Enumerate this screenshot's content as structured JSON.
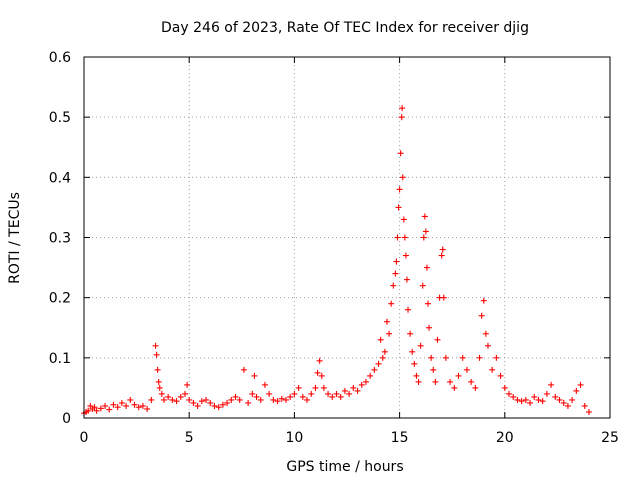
{
  "chart_data": {
    "type": "scatter",
    "title": "Day 246 of 2023, Rate Of TEC Index for receiver djig",
    "xlabel": "GPS time / hours",
    "ylabel": "ROTI / TECUs",
    "xlim": [
      0,
      25
    ],
    "ylim": [
      0,
      0.6
    ],
    "xticks": [
      0,
      5,
      10,
      15,
      20,
      25
    ],
    "yticks": [
      0,
      0.1,
      0.2,
      0.3,
      0.4,
      0.5,
      0.6
    ],
    "xtick_labels": [
      "0",
      "5",
      "10",
      "15",
      "20",
      "25"
    ],
    "ytick_labels": [
      "0",
      "0.1",
      "0.2",
      "0.3",
      "0.4",
      "0.5",
      "0.6"
    ],
    "grid": true,
    "marker": "+",
    "series_color": "#ff0000",
    "series": [
      {
        "name": "ROTI",
        "points": [
          [
            0.0,
            0.008
          ],
          [
            0.1,
            0.01
          ],
          [
            0.2,
            0.012
          ],
          [
            0.3,
            0.02
          ],
          [
            0.4,
            0.015
          ],
          [
            0.5,
            0.018
          ],
          [
            0.6,
            0.012
          ],
          [
            0.8,
            0.016
          ],
          [
            1.0,
            0.02
          ],
          [
            1.2,
            0.014
          ],
          [
            1.4,
            0.022
          ],
          [
            1.6,
            0.018
          ],
          [
            1.8,
            0.025
          ],
          [
            2.0,
            0.02
          ],
          [
            2.2,
            0.03
          ],
          [
            2.4,
            0.022
          ],
          [
            2.6,
            0.018
          ],
          [
            2.8,
            0.02
          ],
          [
            3.0,
            0.015
          ],
          [
            3.2,
            0.03
          ],
          [
            3.4,
            0.12
          ],
          [
            3.45,
            0.105
          ],
          [
            3.5,
            0.08
          ],
          [
            3.55,
            0.06
          ],
          [
            3.6,
            0.05
          ],
          [
            3.7,
            0.04
          ],
          [
            3.8,
            0.03
          ],
          [
            4.0,
            0.035
          ],
          [
            4.2,
            0.03
          ],
          [
            4.4,
            0.028
          ],
          [
            4.6,
            0.035
          ],
          [
            4.8,
            0.04
          ],
          [
            4.9,
            0.055
          ],
          [
            5.0,
            0.03
          ],
          [
            5.2,
            0.025
          ],
          [
            5.4,
            0.02
          ],
          [
            5.6,
            0.028
          ],
          [
            5.8,
            0.03
          ],
          [
            6.0,
            0.025
          ],
          [
            6.2,
            0.02
          ],
          [
            6.4,
            0.018
          ],
          [
            6.6,
            0.022
          ],
          [
            6.8,
            0.025
          ],
          [
            7.0,
            0.03
          ],
          [
            7.2,
            0.035
          ],
          [
            7.4,
            0.03
          ],
          [
            7.6,
            0.08
          ],
          [
            7.8,
            0.025
          ],
          [
            8.0,
            0.04
          ],
          [
            8.1,
            0.07
          ],
          [
            8.2,
            0.035
          ],
          [
            8.4,
            0.03
          ],
          [
            8.6,
            0.055
          ],
          [
            8.8,
            0.04
          ],
          [
            9.0,
            0.03
          ],
          [
            9.2,
            0.028
          ],
          [
            9.4,
            0.032
          ],
          [
            9.6,
            0.03
          ],
          [
            9.8,
            0.035
          ],
          [
            10.0,
            0.04
          ],
          [
            10.2,
            0.05
          ],
          [
            10.4,
            0.035
          ],
          [
            10.6,
            0.03
          ],
          [
            10.8,
            0.04
          ],
          [
            11.0,
            0.05
          ],
          [
            11.1,
            0.075
          ],
          [
            11.2,
            0.095
          ],
          [
            11.3,
            0.07
          ],
          [
            11.4,
            0.05
          ],
          [
            11.6,
            0.04
          ],
          [
            11.8,
            0.035
          ],
          [
            12.0,
            0.04
          ],
          [
            12.2,
            0.035
          ],
          [
            12.4,
            0.045
          ],
          [
            12.6,
            0.04
          ],
          [
            12.8,
            0.05
          ],
          [
            13.0,
            0.045
          ],
          [
            13.2,
            0.055
          ],
          [
            13.4,
            0.06
          ],
          [
            13.6,
            0.07
          ],
          [
            13.8,
            0.08
          ],
          [
            14.0,
            0.09
          ],
          [
            14.1,
            0.13
          ],
          [
            14.2,
            0.1
          ],
          [
            14.3,
            0.11
          ],
          [
            14.4,
            0.16
          ],
          [
            14.5,
            0.14
          ],
          [
            14.6,
            0.19
          ],
          [
            14.7,
            0.22
          ],
          [
            14.8,
            0.24
          ],
          [
            14.85,
            0.26
          ],
          [
            14.9,
            0.3
          ],
          [
            14.95,
            0.35
          ],
          [
            15.0,
            0.38
          ],
          [
            15.05,
            0.44
          ],
          [
            15.1,
            0.5
          ],
          [
            15.12,
            0.515
          ],
          [
            15.15,
            0.4
          ],
          [
            15.2,
            0.33
          ],
          [
            15.25,
            0.3
          ],
          [
            15.3,
            0.27
          ],
          [
            15.35,
            0.23
          ],
          [
            15.4,
            0.18
          ],
          [
            15.5,
            0.14
          ],
          [
            15.6,
            0.11
          ],
          [
            15.7,
            0.09
          ],
          [
            15.8,
            0.07
          ],
          [
            15.9,
            0.06
          ],
          [
            16.0,
            0.12
          ],
          [
            16.1,
            0.22
          ],
          [
            16.15,
            0.3
          ],
          [
            16.2,
            0.335
          ],
          [
            16.25,
            0.31
          ],
          [
            16.3,
            0.25
          ],
          [
            16.35,
            0.19
          ],
          [
            16.4,
            0.15
          ],
          [
            16.5,
            0.1
          ],
          [
            16.6,
            0.08
          ],
          [
            16.7,
            0.06
          ],
          [
            16.8,
            0.13
          ],
          [
            16.9,
            0.2
          ],
          [
            17.0,
            0.27
          ],
          [
            17.05,
            0.28
          ],
          [
            17.1,
            0.2
          ],
          [
            17.2,
            0.1
          ],
          [
            17.4,
            0.06
          ],
          [
            17.6,
            0.05
          ],
          [
            17.8,
            0.07
          ],
          [
            18.0,
            0.1
          ],
          [
            18.2,
            0.08
          ],
          [
            18.4,
            0.06
          ],
          [
            18.6,
            0.05
          ],
          [
            18.8,
            0.1
          ],
          [
            18.9,
            0.17
          ],
          [
            19.0,
            0.195
          ],
          [
            19.1,
            0.14
          ],
          [
            19.2,
            0.12
          ],
          [
            19.4,
            0.08
          ],
          [
            19.6,
            0.1
          ],
          [
            19.8,
            0.07
          ],
          [
            20.0,
            0.05
          ],
          [
            20.2,
            0.04
          ],
          [
            20.4,
            0.035
          ],
          [
            20.6,
            0.03
          ],
          [
            20.8,
            0.028
          ],
          [
            21.0,
            0.03
          ],
          [
            21.2,
            0.025
          ],
          [
            21.4,
            0.035
          ],
          [
            21.6,
            0.03
          ],
          [
            21.8,
            0.028
          ],
          [
            22.0,
            0.04
          ],
          [
            22.2,
            0.055
          ],
          [
            22.4,
            0.035
          ],
          [
            22.6,
            0.03
          ],
          [
            22.8,
            0.025
          ],
          [
            23.0,
            0.02
          ],
          [
            23.2,
            0.03
          ],
          [
            23.4,
            0.045
          ],
          [
            23.6,
            0.055
          ],
          [
            23.8,
            0.02
          ],
          [
            24.0,
            0.01
          ]
        ]
      }
    ]
  }
}
